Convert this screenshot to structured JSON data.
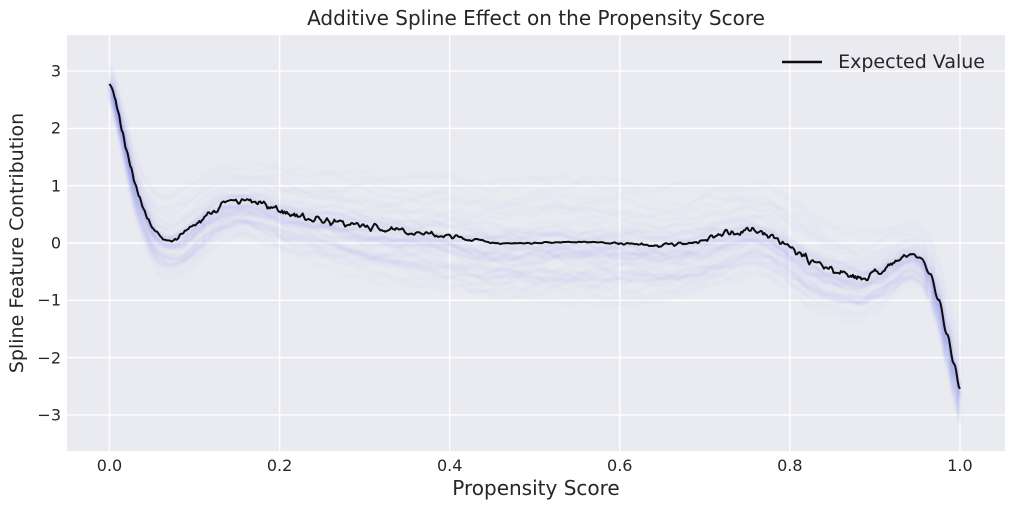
{
  "figure": {
    "title": "Additive Spline Effect on the Propensity Score"
  },
  "axes": {
    "xlabel": "Propensity Score",
    "ylabel": "Spline Feature Contribution",
    "xlim": [
      -0.05,
      1.053
    ],
    "ylim": [
      -3.63,
      3.63
    ],
    "xticks": {
      "values": [
        0.0,
        0.2,
        0.4,
        0.6,
        0.8,
        1.0
      ],
      "labels": [
        "0.0",
        "0.2",
        "0.4",
        "0.6",
        "0.8",
        "1.0"
      ]
    },
    "yticks": {
      "values": [
        3,
        2,
        1,
        0,
        -1,
        -2,
        -3
      ],
      "labels": [
        "3",
        "2",
        "1",
        "0",
        "−1",
        "−2",
        "−3"
      ]
    },
    "grid": true
  },
  "legend": {
    "position": "upper right",
    "entries": [
      {
        "label": "Expected Value",
        "color": "#0d0d0d"
      }
    ]
  },
  "style": {
    "plot_bg": "#eaeaf1",
    "grid_color": "#ffffff",
    "line_color": "#0d0d0d",
    "band_color": "#6f76e3",
    "text_color": "#262626"
  },
  "chart_data": {
    "type": "line",
    "title": "Additive Spline Effect on the Propensity Score",
    "xlabel": "Propensity Score",
    "ylabel": "Spline Feature Contribution",
    "xlim": [
      -0.05,
      1.053
    ],
    "ylim": [
      -3.63,
      3.63
    ],
    "grid": true,
    "legend_position": "upper right",
    "series": [
      {
        "name": "Expected Value",
        "description": "posterior expected spline contribution vs propensity score; jagged black line",
        "points": [
          [
            0.0,
            2.78
          ],
          [
            0.003,
            2.7
          ],
          [
            0.006,
            2.55
          ],
          [
            0.01,
            2.3
          ],
          [
            0.015,
            1.95
          ],
          [
            0.02,
            1.62
          ],
          [
            0.025,
            1.32
          ],
          [
            0.03,
            1.04
          ],
          [
            0.035,
            0.8
          ],
          [
            0.04,
            0.6
          ],
          [
            0.045,
            0.43
          ],
          [
            0.05,
            0.29
          ],
          [
            0.055,
            0.18
          ],
          [
            0.06,
            0.11
          ],
          [
            0.068,
            0.06
          ],
          [
            0.075,
            0.07
          ],
          [
            0.085,
            0.13
          ],
          [
            0.095,
            0.23
          ],
          [
            0.105,
            0.36
          ],
          [
            0.115,
            0.5
          ],
          [
            0.125,
            0.6
          ],
          [
            0.135,
            0.67
          ],
          [
            0.15,
            0.71
          ],
          [
            0.16,
            0.72
          ],
          [
            0.175,
            0.69
          ],
          [
            0.19,
            0.62
          ],
          [
            0.21,
            0.52
          ],
          [
            0.23,
            0.45
          ],
          [
            0.25,
            0.4
          ],
          [
            0.28,
            0.33
          ],
          [
            0.31,
            0.27
          ],
          [
            0.34,
            0.21
          ],
          [
            0.37,
            0.16
          ],
          [
            0.4,
            0.12
          ],
          [
            0.43,
            0.05
          ],
          [
            0.46,
            0.0
          ],
          [
            0.49,
            -0.01
          ],
          [
            0.52,
            0.01
          ],
          [
            0.55,
            0.02
          ],
          [
            0.58,
            0.01
          ],
          [
            0.61,
            -0.02
          ],
          [
            0.64,
            -0.05
          ],
          [
            0.665,
            -0.03
          ],
          [
            0.69,
            0.03
          ],
          [
            0.715,
            0.12
          ],
          [
            0.735,
            0.18
          ],
          [
            0.755,
            0.22
          ],
          [
            0.775,
            0.16
          ],
          [
            0.79,
            0.02
          ],
          [
            0.805,
            -0.15
          ],
          [
            0.825,
            -0.32
          ],
          [
            0.845,
            -0.45
          ],
          [
            0.865,
            -0.54
          ],
          [
            0.885,
            -0.6
          ],
          [
            0.905,
            -0.5
          ],
          [
            0.92,
            -0.36
          ],
          [
            0.935,
            -0.24
          ],
          [
            0.945,
            -0.2
          ],
          [
            0.955,
            -0.28
          ],
          [
            0.965,
            -0.55
          ],
          [
            0.975,
            -1.0
          ],
          [
            0.985,
            -1.6
          ],
          [
            0.993,
            -2.1
          ],
          [
            1.0,
            -2.55
          ]
        ]
      }
    ],
    "uncertainty_band": {
      "description": "cloud of translucent posterior spline sample curves around the expected value",
      "sigma_points": [
        [
          0.0,
          0.13
        ],
        [
          0.02,
          0.18
        ],
        [
          0.05,
          0.25
        ],
        [
          0.08,
          0.3
        ],
        [
          0.12,
          0.28
        ],
        [
          0.16,
          0.25
        ],
        [
          0.2,
          0.28
        ],
        [
          0.3,
          0.35
        ],
        [
          0.4,
          0.4
        ],
        [
          0.5,
          0.42
        ],
        [
          0.6,
          0.42
        ],
        [
          0.7,
          0.38
        ],
        [
          0.76,
          0.32
        ],
        [
          0.82,
          0.32
        ],
        [
          0.88,
          0.3
        ],
        [
          0.94,
          0.22
        ],
        [
          0.97,
          0.22
        ],
        [
          1.0,
          0.28
        ]
      ],
      "n_samples": 60,
      "sample_alpha": 0.045
    },
    "mean_line_noise_amp": [
      [
        0.0,
        0.004
      ],
      [
        0.04,
        0.01
      ],
      [
        0.08,
        0.03
      ],
      [
        0.12,
        0.045
      ],
      [
        0.2,
        0.05
      ],
      [
        0.3,
        0.04
      ],
      [
        0.42,
        0.02
      ],
      [
        0.47,
        0.008
      ],
      [
        0.58,
        0.008
      ],
      [
        0.63,
        0.018
      ],
      [
        0.68,
        0.03
      ],
      [
        0.75,
        0.05
      ],
      [
        0.8,
        0.05
      ],
      [
        0.88,
        0.045
      ],
      [
        0.93,
        0.03
      ],
      [
        0.96,
        0.012
      ],
      [
        1.0,
        0.005
      ]
    ]
  }
}
